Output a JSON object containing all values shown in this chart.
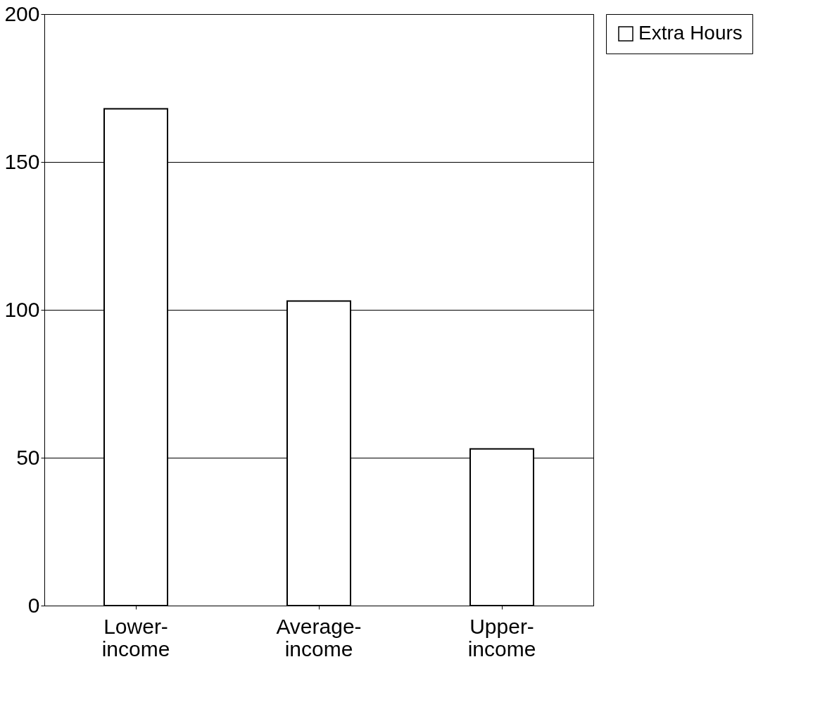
{
  "chart_data": {
    "type": "bar",
    "categories": [
      "Lower-income",
      "Average-income",
      "Upper-income"
    ],
    "series": [
      {
        "name": "Extra Hours",
        "color": "#ffffff",
        "values": [
          168,
          103,
          53
        ]
      }
    ],
    "ylim": [
      0,
      200
    ],
    "yticks": [
      0,
      50,
      100,
      150,
      200
    ],
    "grid": "y",
    "legend": "right"
  }
}
